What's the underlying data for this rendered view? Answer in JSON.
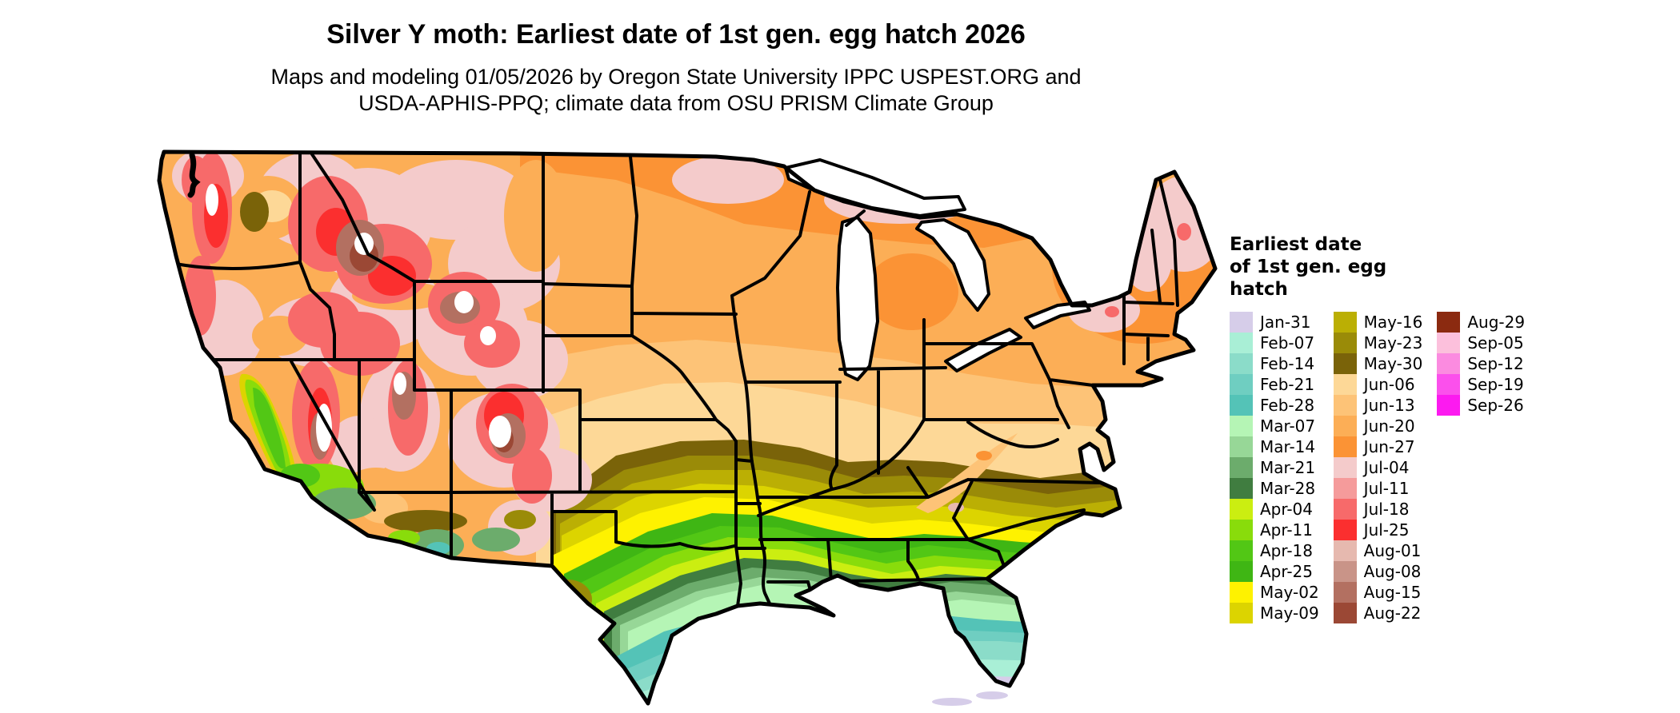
{
  "title": "Silver Y moth: Earliest date of 1st gen. egg hatch 2026",
  "subtitle_line1": "Maps and modeling 01/05/2026 by Oregon State University IPPC USPEST.ORG and",
  "subtitle_line2": "USDA-APHIS-PPQ; climate data from OSU PRISM Climate Group",
  "legend": {
    "title_lines": [
      "Earliest date",
      "of 1st gen. egg",
      "hatch"
    ],
    "columns": [
      {
        "entries": [
          {
            "label": "Jan-31",
            "color": "#D6CDE9"
          },
          {
            "label": "Feb-07",
            "color": "#A9EFD6"
          },
          {
            "label": "Feb-14",
            "color": "#8BDCC9"
          },
          {
            "label": "Feb-21",
            "color": "#6FCEC1"
          },
          {
            "label": "Feb-28",
            "color": "#54C3B7"
          },
          {
            "label": "Mar-07",
            "color": "#B5F5B5"
          },
          {
            "label": "Mar-14",
            "color": "#97D797"
          },
          {
            "label": "Mar-21",
            "color": "#6CAC6C"
          },
          {
            "label": "Mar-28",
            "color": "#407D40"
          },
          {
            "label": "Apr-04",
            "color": "#CBEE11"
          },
          {
            "label": "Apr-11",
            "color": "#89DC0B"
          },
          {
            "label": "Apr-18",
            "color": "#52C715"
          },
          {
            "label": "Apr-25",
            "color": "#3FB614"
          },
          {
            "label": "May-02",
            "color": "#FEF200"
          },
          {
            "label": "May-09",
            "color": "#DCD400"
          }
        ]
      },
      {
        "entries": [
          {
            "label": "May-16",
            "color": "#BBAF04"
          },
          {
            "label": "May-23",
            "color": "#9A8B08"
          },
          {
            "label": "May-30",
            "color": "#7A6309"
          },
          {
            "label": "Jun-06",
            "color": "#FDD897"
          },
          {
            "label": "Jun-13",
            "color": "#FDC377"
          },
          {
            "label": "Jun-20",
            "color": "#FCAE56"
          },
          {
            "label": "Jun-27",
            "color": "#FB9335"
          },
          {
            "label": "Jul-04",
            "color": "#F4CBCB"
          },
          {
            "label": "Jul-11",
            "color": "#F59B9B"
          },
          {
            "label": "Jul-18",
            "color": "#F76A6A"
          },
          {
            "label": "Jul-25",
            "color": "#FB2F2F"
          },
          {
            "label": "Aug-01",
            "color": "#E6B9AF"
          },
          {
            "label": "Aug-08",
            "color": "#C99488"
          },
          {
            "label": "Aug-15",
            "color": "#B37061"
          },
          {
            "label": "Aug-22",
            "color": "#9B4835"
          }
        ]
      },
      {
        "entries": [
          {
            "label": "Aug-29",
            "color": "#8B2A10"
          },
          {
            "label": "Sep-05",
            "color": "#FCC0DC"
          },
          {
            "label": "Sep-12",
            "color": "#FB8BE0"
          },
          {
            "label": "Sep-19",
            "color": "#FB50EC"
          },
          {
            "label": "Sep-26",
            "color": "#FC1AF0"
          }
        ]
      }
    ]
  },
  "map": {
    "area": "Contiguous United States",
    "border_color": "#000000",
    "water_color": "#FFFFFF",
    "gradient_note": "Earliest hatch dates: teal/lavender (Jan-Feb) in south Texas and Florida, greens (Mar-Apr) along Gulf and Southeast, yellows/olives (May) mid-south, tans/oranges (Jun) Midwest and Northeast, pinks/reds (Jul) and browns (Aug) in northern and mountain-west areas, white = no hatch"
  }
}
